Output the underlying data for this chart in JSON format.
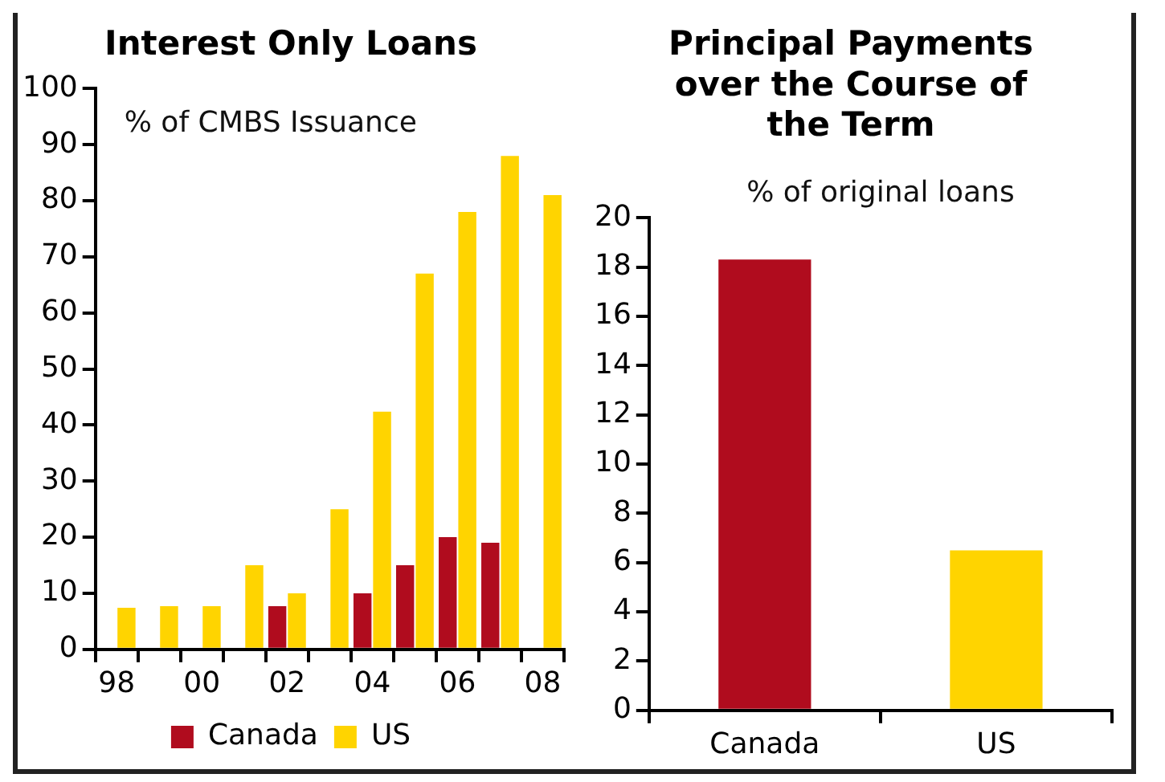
{
  "chart_data": [
    {
      "type": "bar",
      "title": "Interest Only Loans",
      "annotations": [
        "% of CMBS Issuance"
      ],
      "categories": [
        "98",
        null,
        "00",
        null,
        "02",
        null,
        "04",
        null,
        "06",
        null,
        "08"
      ],
      "series": [
        {
          "name": "Canada",
          "color": "#b00c1e",
          "values": [
            null,
            null,
            null,
            null,
            7.7,
            null,
            10,
            15,
            20,
            19,
            null
          ]
        },
        {
          "name": "US",
          "color": "#ffd400",
          "values": [
            7.4,
            7.7,
            7.7,
            15,
            10,
            25,
            42.4,
            67,
            78,
            88,
            81
          ]
        }
      ],
      "ylim": [
        0,
        100
      ],
      "yticks": [
        0,
        10,
        20,
        30,
        40,
        50,
        60,
        70,
        80,
        90,
        100
      ],
      "grid": false,
      "legend": "bottom"
    },
    {
      "type": "bar",
      "title": "Principal Payments over the Course of the Term",
      "annotations": [
        "% of original loans"
      ],
      "categories": [
        "Canada",
        "US"
      ],
      "values": [
        18.3,
        6.5
      ],
      "colors": [
        "#b00c1e",
        "#ffd400"
      ],
      "ylim": [
        0,
        20
      ],
      "yticks": [
        0,
        2,
        4,
        6,
        8,
        10,
        12,
        14,
        16,
        18,
        20
      ],
      "grid": false,
      "legend": false
    }
  ]
}
